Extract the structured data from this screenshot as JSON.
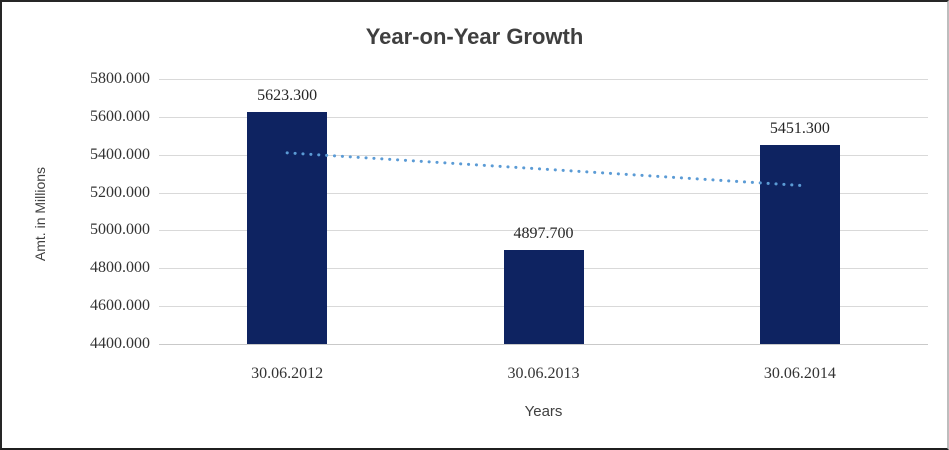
{
  "chart_data": {
    "type": "bar",
    "title": "Year-on-Year Growth",
    "xlabel": "Years",
    "ylabel": "Amt. in Millions",
    "categories": [
      "30.06.2012",
      "30.06.2013",
      "30.06.2014"
    ],
    "values": [
      5623.3,
      4897.7,
      5451.3
    ],
    "data_labels": [
      "5623.300",
      "4897.700",
      "5451.300"
    ],
    "y_ticks": [
      "5800.000",
      "5600.000",
      "5400.000",
      "5200.000",
      "5000.000",
      "4800.000",
      "4600.000",
      "4400.000"
    ],
    "ylim": [
      4400,
      5800
    ],
    "y_step": 200,
    "grid": true,
    "legend_position": "none",
    "bar_color": "#0e2361",
    "gridline_color": "#d9d9d9",
    "trendline": {
      "type": "linear",
      "style": "dotted",
      "color": "#5b9bd5",
      "start_value": 5410,
      "end_value": 5238
    }
  }
}
